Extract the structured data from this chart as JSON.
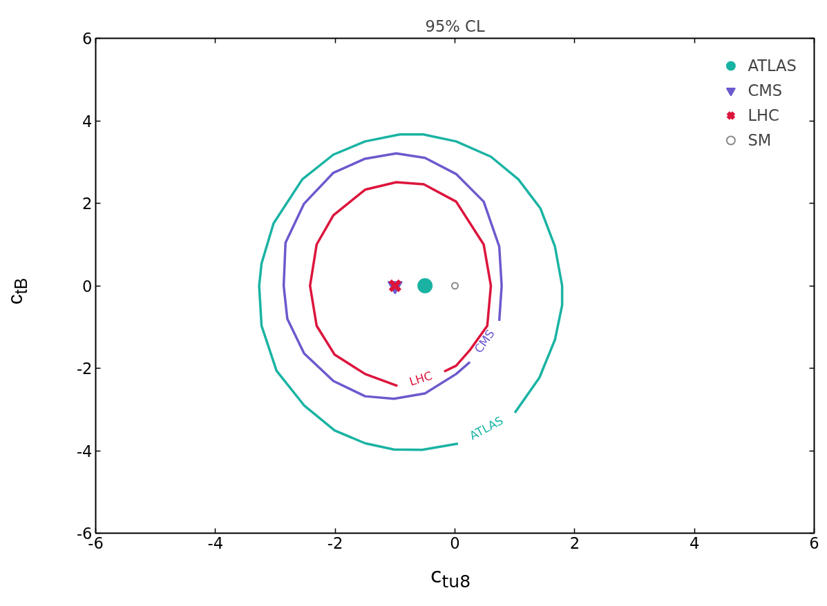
{
  "chart_data": {
    "type": "line",
    "title": "95% CL",
    "xlabel": "c$_{tu8}$",
    "ylabel": "c$_{tB}$",
    "xlim": [
      -6,
      6
    ],
    "ylim": [
      -6,
      6
    ],
    "xticks": [
      -6,
      -4,
      -2,
      0,
      2,
      4,
      6
    ],
    "yticks": [
      -6,
      -4,
      -2,
      0,
      2,
      4,
      6
    ],
    "grid": false,
    "legend": "top right",
    "series": [
      {
        "color": "#1ab3a3",
        "x": [
          1.0,
          1.41,
          1.67,
          1.79,
          1.79,
          1.67,
          1.43,
          1.06,
          0.6,
          0.02,
          -0.53,
          -0.92,
          -1.5,
          -2.03,
          -2.55,
          -3.03,
          -3.23,
          -3.27,
          -3.23,
          -2.98,
          -2.52,
          -2.01,
          -1.5,
          -1.02,
          -0.55,
          0.05
        ],
        "values": [
          -3.08,
          -2.23,
          -1.31,
          -0.47,
          0,
          0.95,
          1.87,
          2.58,
          3.13,
          3.5,
          3.67,
          3.67,
          3.5,
          3.18,
          2.58,
          1.51,
          0.54,
          0,
          -0.97,
          -2.06,
          -2.9,
          -3.51,
          -3.82,
          -3.97,
          -3.98,
          -3.83
        ]
      },
      {
        "color": "#6a5acd",
        "x": [
          0.74,
          0.78,
          0.74,
          0.48,
          0.02,
          -0.5,
          -0.98,
          -1.5,
          -2.03,
          -2.52,
          -2.83,
          -2.86,
          -2.8,
          -2.52,
          -2.03,
          -1.5,
          -1.02,
          -0.5,
          0.02,
          0.25
        ],
        "values": [
          -0.85,
          0,
          0.95,
          2.04,
          2.71,
          3.1,
          3.21,
          3.08,
          2.74,
          1.99,
          1.04,
          0,
          -0.8,
          -1.64,
          -2.31,
          -2.68,
          -2.74,
          -2.61,
          -2.14,
          -1.85
        ]
      },
      {
        "color": "#dc143c",
        "x": [
          -0.18,
          0.02,
          0.25,
          0.54,
          0.6,
          0.48,
          0.02,
          -0.52,
          -0.98,
          -1.5,
          -2.03,
          -2.31,
          -2.42,
          -2.31,
          -2.01,
          -1.5,
          -0.96
        ],
        "values": [
          -2.08,
          -1.94,
          -1.56,
          -0.97,
          0,
          1.0,
          2.04,
          2.46,
          2.51,
          2.33,
          1.71,
          1.0,
          0,
          -0.97,
          -1.67,
          -2.14,
          -2.43
        ]
      },
      {
        "type": "scatter",
        "name": "ATLAS",
        "marker": "circle",
        "color": "#1ab3a3",
        "x": [
          -0.5
        ],
        "values": [
          0
        ]
      },
      {
        "type": "scatter",
        "name": "CMS",
        "marker": "triangle",
        "color": "#6a5acd",
        "x": [
          -1
        ],
        "values": [
          0
        ]
      },
      {
        "type": "scatter",
        "name": "LHC",
        "marker": "cross",
        "color": "#dc143c",
        "x": [
          -1
        ],
        "values": [
          0
        ]
      },
      {
        "type": "scatter",
        "name": "SM",
        "marker": "circle",
        "color": "#888888",
        "x": [
          0
        ],
        "values": [
          0
        ]
      }
    ],
    "annotations": [
      "ATLAS",
      "CMS",
      "LHC"
    ]
  }
}
